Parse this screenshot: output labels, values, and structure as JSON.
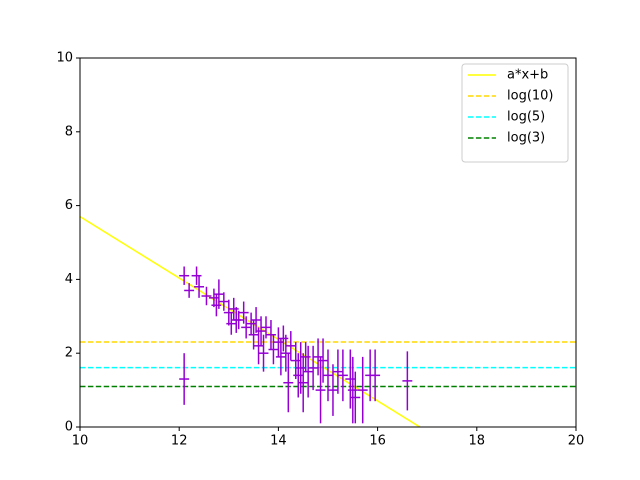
{
  "chart_data": {
    "type": "errorbar",
    "xlim": [
      10,
      20
    ],
    "xticks": [
      10,
      12,
      14,
      16,
      18,
      20
    ],
    "ylim": [
      0,
      10
    ],
    "yticks": [
      0,
      2,
      4,
      6,
      8,
      10
    ],
    "legend": "upper right",
    "series": [
      {
        "name": "a*x+b",
        "color": "#ffff00",
        "style": "solid",
        "x": [
          10,
          16.85
        ],
        "values": [
          5.7,
          0
        ]
      },
      {
        "name": "log(10)",
        "color": "#ffd700",
        "style": "dashed",
        "x": [
          10,
          20
        ],
        "values": [
          2.303,
          2.303
        ]
      },
      {
        "name": "log(5)",
        "color": "#00ffff",
        "style": "dashed",
        "x": [
          10,
          20
        ],
        "values": [
          1.609,
          1.609
        ]
      },
      {
        "name": "log(3)",
        "color": "#008000",
        "style": "dashed",
        "x": [
          10,
          20
        ],
        "values": [
          1.099,
          1.099
        ]
      }
    ],
    "errorbars": {
      "color": "#9400d3",
      "xerr": 0.1,
      "x": [
        12.1,
        12.1,
        12.2,
        12.35,
        12.4,
        12.55,
        12.7,
        12.75,
        12.8,
        12.9,
        13.0,
        13.05,
        13.1,
        13.15,
        13.2,
        13.3,
        13.35,
        13.45,
        13.5,
        13.55,
        13.6,
        13.65,
        13.7,
        13.75,
        13.85,
        13.9,
        14.0,
        14.05,
        14.1,
        14.15,
        14.2,
        14.25,
        14.35,
        14.4,
        14.45,
        14.5,
        14.55,
        14.6,
        14.7,
        14.8,
        14.85,
        14.9,
        15.0,
        15.1,
        15.2,
        15.3,
        15.45,
        15.5,
        15.55,
        15.7,
        15.85,
        15.95,
        16.6
      ],
      "values": [
        4.1,
        1.3,
        3.7,
        4.1,
        3.8,
        3.55,
        3.5,
        3.3,
        3.6,
        3.4,
        3.1,
        2.8,
        3.2,
        2.9,
        2.9,
        3.1,
        2.7,
        2.8,
        2.5,
        2.9,
        2.2,
        2.6,
        2.0,
        2.7,
        2.5,
        2.1,
        2.3,
        1.9,
        2.4,
        2.0,
        1.2,
        2.2,
        1.8,
        1.4,
        1.6,
        1.2,
        1.9,
        1.5,
        1.6,
        1.9,
        1.0,
        1.8,
        1.4,
        1.0,
        1.5,
        1.4,
        1.3,
        1.0,
        0.8,
        1.0,
        1.4,
        1.4,
        1.25
      ],
      "yerr": [
        0.25,
        0.7,
        0.2,
        0.25,
        0.3,
        0.25,
        0.25,
        0.3,
        0.4,
        0.25,
        0.35,
        0.3,
        0.3,
        0.35,
        0.25,
        0.3,
        0.3,
        0.3,
        0.4,
        0.35,
        0.5,
        0.4,
        0.5,
        0.3,
        0.4,
        0.4,
        0.4,
        0.5,
        0.35,
        0.5,
        0.8,
        0.4,
        0.5,
        0.6,
        0.7,
        0.8,
        0.4,
        0.7,
        0.6,
        0.5,
        0.9,
        0.6,
        0.7,
        0.7,
        0.6,
        0.7,
        0.8,
        0.9,
        0.7,
        0.9,
        0.7,
        0.7,
        0.8
      ]
    }
  }
}
